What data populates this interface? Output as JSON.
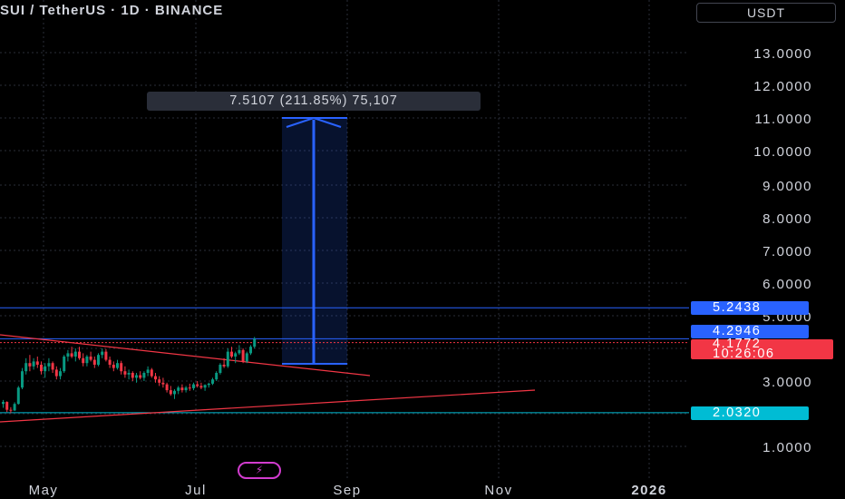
{
  "header": {
    "symbol_title": "SUI / TetherUS · 1D · BINANCE",
    "currency_button": "USDT"
  },
  "measure": {
    "label": "7.5107 (211.85%) 75,107",
    "from_price": 3.55,
    "to_price": 11.0
  },
  "price_badges": {
    "resistance": "5.2438",
    "last_close": "4.2946",
    "current_price": "4.1772",
    "countdown": "10:26:06",
    "support": "2.0320"
  },
  "colors": {
    "background": "#000000",
    "up": "#089981",
    "down": "#f23645",
    "measure_blue": "#2962ff",
    "support_cyan": "#00bcd4",
    "trendline": "#f23645",
    "flash_icon": "#d23ccf"
  },
  "icons": {
    "bottom": "lightning-icon"
  },
  "chart_data": {
    "type": "candlestick",
    "title": "SUI / TetherUS · 1D · BINANCE",
    "y_axis": {
      "ticks": [
        {
          "value": 13.0,
          "label": "13.0000"
        },
        {
          "value": 12.0,
          "label": "12.0000"
        },
        {
          "value": 11.0,
          "label": "11.0000"
        },
        {
          "value": 10.0,
          "label": "10.0000"
        },
        {
          "value": 9.0,
          "label": "9.0000"
        },
        {
          "value": 8.0,
          "label": "8.0000"
        },
        {
          "value": 7.0,
          "label": "7.0000"
        },
        {
          "value": 6.0,
          "label": "6.0000"
        },
        {
          "value": 5.0,
          "label": "5.0000"
        },
        {
          "value": 3.0,
          "label": "3.0000"
        },
        {
          "value": 1.0,
          "label": "1.0000"
        }
      ]
    },
    "x_axis": {
      "ticks": [
        {
          "label": "May",
          "bold": false
        },
        {
          "label": "Jul",
          "bold": false
        },
        {
          "label": "Sep",
          "bold": false
        },
        {
          "label": "Nov",
          "bold": false
        },
        {
          "label": "2026",
          "bold": true
        }
      ]
    },
    "horizontal_levels": [
      {
        "price": 5.2438,
        "color": "#2962ff"
      },
      {
        "price": 4.2946,
        "color": "#2962ff"
      },
      {
        "price": 4.1772,
        "color": "#f23645",
        "dotted": true
      },
      {
        "price": 2.032,
        "color": "#00bcd4"
      }
    ],
    "candles": [
      [
        2.3,
        2.42,
        2.18,
        2.36
      ],
      [
        2.36,
        2.38,
        2.05,
        2.12
      ],
      [
        2.12,
        2.2,
        2.02,
        2.1
      ],
      [
        2.1,
        2.35,
        2.08,
        2.3
      ],
      [
        2.3,
        2.85,
        2.28,
        2.8
      ],
      [
        2.8,
        3.4,
        2.75,
        3.3
      ],
      [
        3.3,
        3.7,
        3.2,
        3.55
      ],
      [
        3.55,
        3.8,
        3.3,
        3.45
      ],
      [
        3.45,
        3.7,
        3.35,
        3.6
      ],
      [
        3.6,
        3.75,
        3.4,
        3.5
      ],
      [
        3.5,
        3.6,
        3.2,
        3.3
      ],
      [
        3.3,
        3.55,
        3.1,
        3.45
      ],
      [
        3.45,
        3.7,
        3.3,
        3.55
      ],
      [
        3.55,
        3.6,
        3.25,
        3.35
      ],
      [
        3.35,
        3.45,
        3.05,
        3.15
      ],
      [
        3.15,
        3.4,
        3.05,
        3.3
      ],
      [
        3.3,
        3.8,
        3.25,
        3.75
      ],
      [
        3.75,
        3.95,
        3.6,
        3.85
      ],
      [
        3.85,
        4.05,
        3.7,
        3.75
      ],
      [
        3.75,
        4.0,
        3.6,
        3.9
      ],
      [
        3.9,
        4.05,
        3.65,
        3.7
      ],
      [
        3.7,
        3.85,
        3.45,
        3.55
      ],
      [
        3.55,
        3.8,
        3.45,
        3.75
      ],
      [
        3.75,
        3.9,
        3.6,
        3.65
      ],
      [
        3.65,
        3.75,
        3.4,
        3.5
      ],
      [
        3.5,
        3.85,
        3.45,
        3.8
      ],
      [
        3.8,
        4.0,
        3.7,
        3.9
      ],
      [
        3.9,
        3.98,
        3.6,
        3.65
      ],
      [
        3.65,
        3.75,
        3.4,
        3.5
      ],
      [
        3.5,
        3.6,
        3.3,
        3.4
      ],
      [
        3.4,
        3.65,
        3.35,
        3.55
      ],
      [
        3.55,
        3.62,
        3.2,
        3.3
      ],
      [
        3.3,
        3.45,
        3.1,
        3.2
      ],
      [
        3.2,
        3.35,
        3.05,
        3.25
      ],
      [
        3.25,
        3.3,
        3.0,
        3.1
      ],
      [
        3.1,
        3.25,
        2.95,
        3.18
      ],
      [
        3.18,
        3.3,
        3.05,
        3.1
      ],
      [
        3.1,
        3.3,
        3.0,
        3.25
      ],
      [
        3.25,
        3.45,
        3.15,
        3.35
      ],
      [
        3.35,
        3.4,
        3.1,
        3.15
      ],
      [
        3.15,
        3.25,
        2.95,
        3.05
      ],
      [
        3.05,
        3.15,
        2.85,
        2.95
      ],
      [
        2.95,
        3.1,
        2.8,
        2.9
      ],
      [
        2.9,
        2.95,
        2.65,
        2.72
      ],
      [
        2.72,
        2.85,
        2.55,
        2.6
      ],
      [
        2.6,
        2.75,
        2.45,
        2.7
      ],
      [
        2.7,
        2.85,
        2.6,
        2.8
      ],
      [
        2.8,
        2.9,
        2.65,
        2.72
      ],
      [
        2.72,
        2.85,
        2.65,
        2.8
      ],
      [
        2.8,
        2.92,
        2.7,
        2.78
      ],
      [
        2.78,
        2.95,
        2.72,
        2.9
      ],
      [
        2.9,
        3.0,
        2.8,
        2.85
      ],
      [
        2.85,
        2.95,
        2.75,
        2.8
      ],
      [
        2.8,
        2.9,
        2.7,
        2.88
      ],
      [
        2.88,
        2.95,
        2.8,
        2.92
      ],
      [
        2.92,
        3.1,
        2.88,
        3.05
      ],
      [
        3.05,
        3.3,
        3.0,
        3.25
      ],
      [
        3.25,
        3.55,
        3.2,
        3.5
      ],
      [
        3.5,
        3.7,
        3.4,
        3.45
      ],
      [
        3.45,
        4.0,
        3.4,
        3.9
      ],
      [
        3.9,
        4.05,
        3.7,
        3.75
      ],
      [
        3.75,
        3.9,
        3.55,
        3.85
      ],
      [
        3.85,
        4.1,
        3.8,
        3.95
      ],
      [
        3.95,
        4.0,
        3.55,
        3.6
      ],
      [
        3.6,
        3.9,
        3.55,
        3.85
      ],
      [
        3.85,
        4.1,
        3.8,
        4.05
      ],
      [
        4.05,
        4.35,
        4.0,
        4.29
      ]
    ]
  }
}
